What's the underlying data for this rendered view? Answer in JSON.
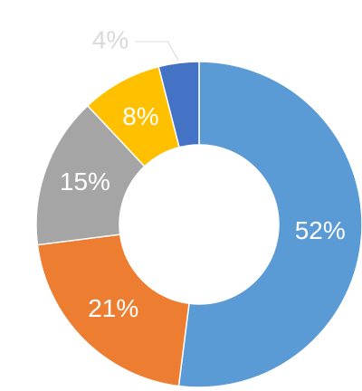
{
  "chart_data": {
    "type": "donut",
    "values": [
      52,
      21,
      15,
      8,
      4
    ],
    "value_labels": [
      "52%",
      "21%",
      "15%",
      "8%",
      "4%"
    ],
    "colors": [
      "#5b9bd5",
      "#ed7d31",
      "#a5a5a5",
      "#ffc000",
      "#4472c4"
    ]
  }
}
